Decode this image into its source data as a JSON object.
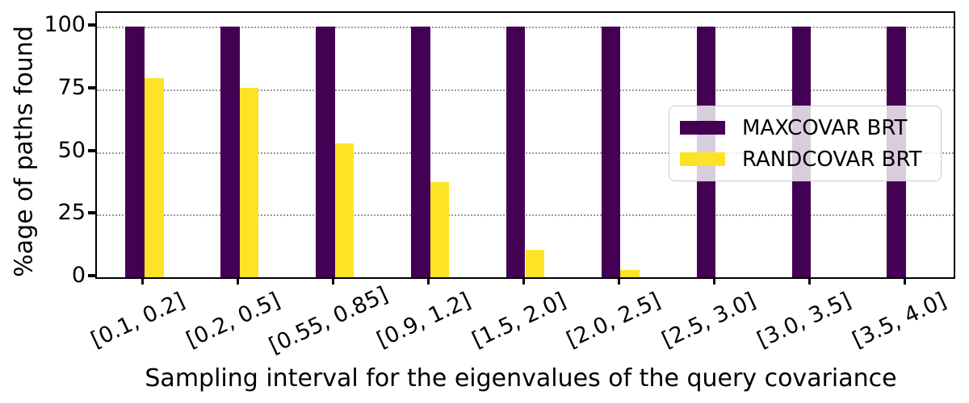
{
  "chart_data": {
    "type": "bar",
    "title": "",
    "xlabel": "Sampling interval for the eigenvalues of the query covariance",
    "ylabel": "%age of paths found",
    "categories": [
      "[0.1, 0.2]",
      "[0.2, 0.5]",
      "[0.55, 0.85]",
      "[0.9, 1.2]",
      "[1.5, 2.0]",
      "[2.0, 2.5]",
      "[2.5, 3.0]",
      "[3.0, 3.5]",
      "[3.5, 4.0]"
    ],
    "series": [
      {
        "name": "MAXCOVAR BRT",
        "color": "#440154",
        "values": [
          100,
          100,
          100,
          100,
          100,
          100,
          100,
          100,
          100
        ]
      },
      {
        "name": "RANDCOVAR BRT",
        "color": "#fce325",
        "values": [
          79.5,
          75.5,
          53.5,
          38,
          11,
          3,
          0,
          0,
          0
        ]
      }
    ],
    "yticks": [
      "0",
      "25",
      "50",
      "75",
      "100"
    ],
    "ylim": [
      0,
      105.5
    ],
    "grid": "horizontal-dotted",
    "grid_color": "#9a9a9a",
    "legend_position": "center-right",
    "xtick_rotation_deg": 25,
    "axis_color": "#000000"
  }
}
